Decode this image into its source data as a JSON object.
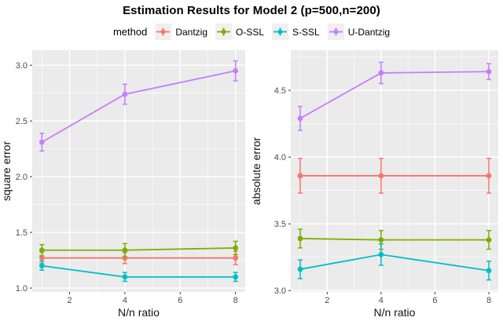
{
  "title": "Estimation Results for Model 2 (p=500,n=200)",
  "legend": {
    "label": "method",
    "items": [
      {
        "label": "Dantzig",
        "color": "#F8766D"
      },
      {
        "label": "O-SSL",
        "color": "#7CAE00"
      },
      {
        "label": "S-SSL",
        "color": "#00BFC4"
      },
      {
        "label": "U-Dantzig",
        "color": "#C77CFF"
      }
    ]
  },
  "chart_data": [
    {
      "type": "line",
      "panel": "left",
      "xlabel": "N/n ratio",
      "ylabel": "square error",
      "x": [
        1,
        4,
        8
      ],
      "xticks": [
        2,
        4,
        6,
        8
      ],
      "xtick_labels": [
        "2",
        "4",
        "6",
        "8"
      ],
      "yticks": [
        1.0,
        1.5,
        2.0,
        2.5,
        3.0
      ],
      "ytick_labels": [
        "1.0",
        "1.5",
        "2.0",
        "2.5",
        "3.0"
      ],
      "xlim": [
        0.65,
        8.35
      ],
      "ylim": [
        0.965,
        3.135
      ],
      "grid": true,
      "legend_position": "top",
      "series": [
        {
          "name": "Dantzig",
          "color": "#F8766D",
          "values": [
            1.27,
            1.27,
            1.27
          ],
          "errors": [
            0.05,
            0.05,
            0.06
          ]
        },
        {
          "name": "O-SSL",
          "color": "#7CAE00",
          "values": [
            1.34,
            1.34,
            1.36
          ],
          "errors": [
            0.05,
            0.06,
            0.06
          ]
        },
        {
          "name": "S-SSL",
          "color": "#00BFC4",
          "values": [
            1.2,
            1.1,
            1.1
          ],
          "errors": [
            0.04,
            0.04,
            0.04
          ]
        },
        {
          "name": "U-Dantzig",
          "color": "#C77CFF",
          "values": [
            2.31,
            2.74,
            2.95
          ],
          "errors": [
            0.08,
            0.09,
            0.09
          ]
        }
      ]
    },
    {
      "type": "line",
      "panel": "right",
      "xlabel": "N/n ratio",
      "ylabel": "absolute error",
      "x": [
        1,
        4,
        8
      ],
      "xticks": [
        2,
        4,
        6,
        8
      ],
      "xtick_labels": [
        "2",
        "4",
        "6",
        "8"
      ],
      "yticks": [
        3.0,
        3.5,
        4.0,
        4.5
      ],
      "ytick_labels": [
        "3.0",
        "3.5",
        "4.0",
        "4.5"
      ],
      "xlim": [
        0.65,
        8.35
      ],
      "ylim": [
        2.99,
        4.8
      ],
      "grid": true,
      "legend_position": "top",
      "series": [
        {
          "name": "Dantzig",
          "color": "#F8766D",
          "values": [
            3.86,
            3.86,
            3.86
          ],
          "errors": [
            0.13,
            0.13,
            0.13
          ]
        },
        {
          "name": "O-SSL",
          "color": "#7CAE00",
          "values": [
            3.39,
            3.38,
            3.38
          ],
          "errors": [
            0.07,
            0.07,
            0.07
          ]
        },
        {
          "name": "S-SSL",
          "color": "#00BFC4",
          "values": [
            3.16,
            3.27,
            3.15
          ],
          "errors": [
            0.07,
            0.08,
            0.07
          ]
        },
        {
          "name": "U-Dantzig",
          "color": "#C77CFF",
          "values": [
            4.29,
            4.63,
            4.64
          ],
          "errors": [
            0.09,
            0.08,
            0.06
          ]
        }
      ]
    }
  ],
  "theme": {
    "panel_bg": "#EBEBEB",
    "grid_color": "#FFFFFF",
    "tick_mark_color": "#333333",
    "axis_text_color": "#4D4D4D",
    "axis_title_color": "#111111",
    "legend_key_bg": "#F0F0F0"
  }
}
